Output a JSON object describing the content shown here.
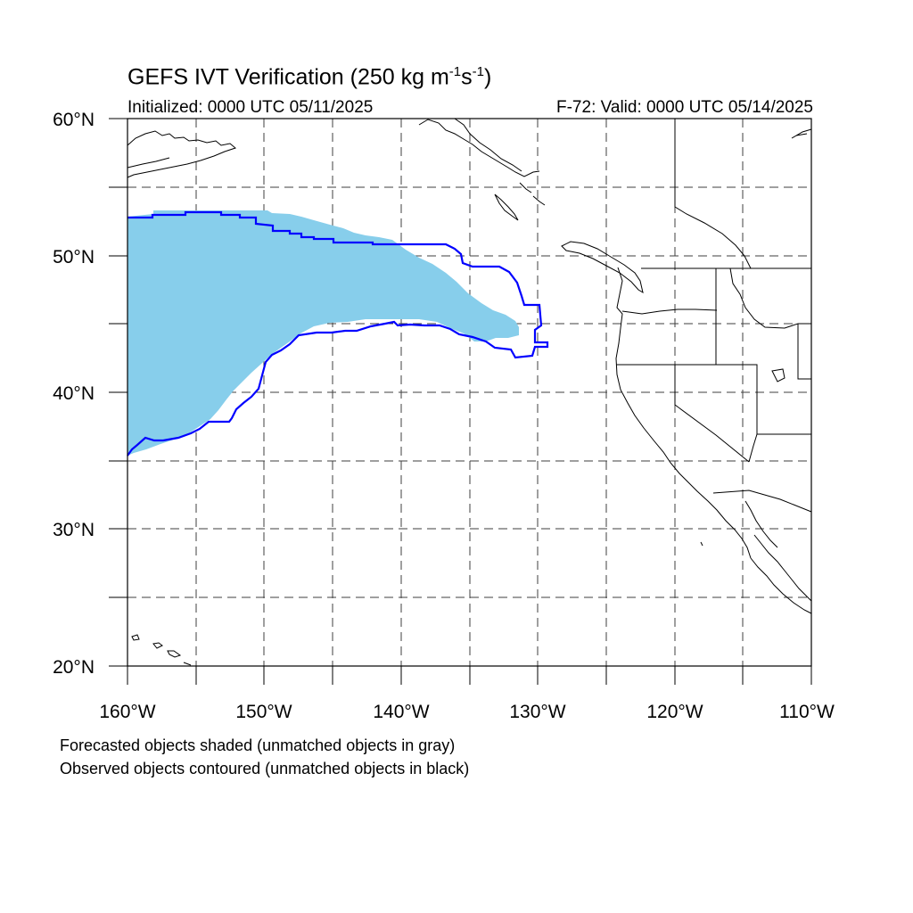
{
  "title": {
    "main": "GEFS IVT Verification (250 kg m",
    "sup1": "-1",
    "mid": "s",
    "sup2": "-1",
    "end": ")"
  },
  "subtitle_left": "Initialized: 0000 UTC 05/11/2025",
  "subtitle_right": "F-72: Valid: 0000 UTC 05/14/2025",
  "captions": [
    "Forecasted objects shaded (unmatched objects in gray)",
    "Observed objects contoured (unmatched objects in black)"
  ],
  "map": {
    "lon_range": [
      -160,
      -110
    ],
    "lat_range": [
      20,
      60
    ],
    "lat_labels": [
      "20°N",
      "30°N",
      "40°N",
      "50°N",
      "60°N"
    ],
    "lon_labels": [
      "160°W",
      "150°W",
      "140°W",
      "130°W",
      "120°W",
      "110°W"
    ],
    "grid": "dashed every 5°",
    "forecast_color": "#87ceeb",
    "observed_color": "#0000ff",
    "coast_color": "#000000"
  }
}
